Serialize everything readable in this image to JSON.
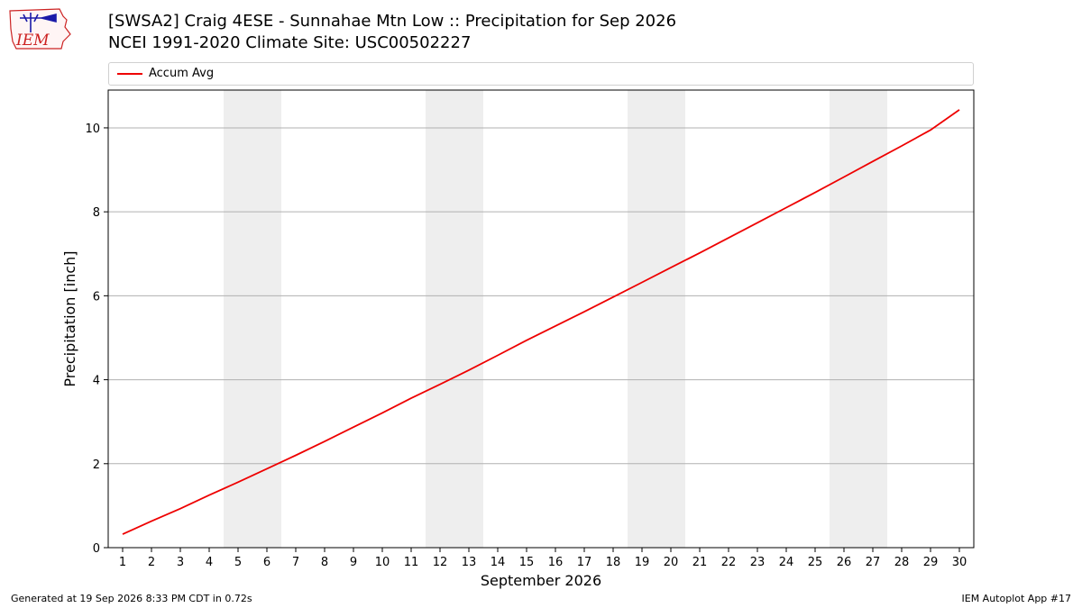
{
  "header": {
    "logo_text": "IEM",
    "title_line1": "[SWSA2] Craig 4ESE - Sunnahae Mtn Low :: Precipitation for Sep 2026",
    "title_line2": "NCEI 1991-2020 Climate Site: USC00502227"
  },
  "footer": {
    "generated": "Generated at 19 Sep 2026 8:33 PM CDT in 0.72s",
    "app": "IEM Autoplot App #17"
  },
  "colors": {
    "line": "#ee0000",
    "weekend_band": "#eeeeee",
    "grid": "#b0b0b0",
    "logo": "#cc2222",
    "logo_icon": "#1a1aa8"
  },
  "chart_data": {
    "type": "line",
    "xlabel": "September 2026",
    "ylabel": "Precipitation [inch]",
    "xlim": [
      0.5,
      30.5
    ],
    "ylim": [
      0,
      10.9
    ],
    "yticks": [
      0,
      2,
      4,
      6,
      8,
      10
    ],
    "x": [
      1,
      2,
      3,
      4,
      5,
      6,
      7,
      8,
      9,
      10,
      11,
      12,
      13,
      14,
      15,
      16,
      17,
      18,
      19,
      20,
      21,
      22,
      23,
      24,
      25,
      26,
      27,
      28,
      29,
      30
    ],
    "weekend_spans": [
      [
        4.5,
        6.5
      ],
      [
        11.5,
        13.5
      ],
      [
        18.5,
        20.5
      ],
      [
        25.5,
        27.5
      ]
    ],
    "grid": "horizontal",
    "legend_position": "top",
    "series": [
      {
        "name": "Accum Avg",
        "values": [
          0.32,
          0.63,
          0.93,
          1.25,
          1.56,
          1.88,
          2.2,
          2.53,
          2.87,
          3.21,
          3.56,
          3.89,
          4.23,
          4.58,
          4.94,
          5.28,
          5.62,
          5.97,
          6.32,
          6.67,
          7.02,
          7.38,
          7.74,
          8.1,
          8.46,
          8.83,
          9.2,
          9.57,
          9.95,
          10.43
        ]
      }
    ]
  }
}
